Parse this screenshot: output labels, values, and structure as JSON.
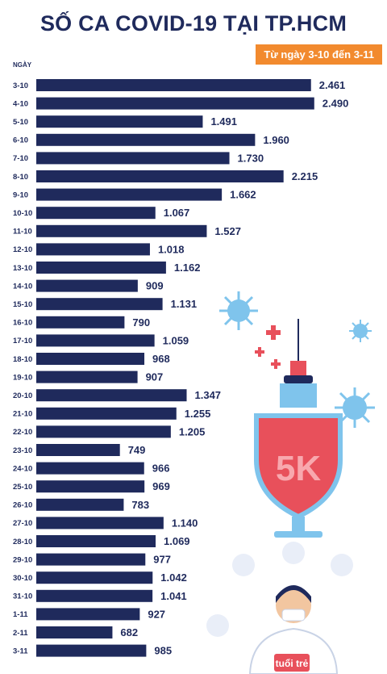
{
  "header": {
    "title": "SỐ CA COVID-19 TẠI TP.HCM",
    "subtitle": "Từ ngày 3-10 đến 3-11",
    "logo_text": "tuổi trẻ"
  },
  "colors": {
    "bar": "#1f2a5c",
    "accent": "#f28a2e"
  },
  "chart_data": {
    "type": "bar",
    "orientation": "horizontal",
    "ylabel": "NGÀY",
    "xlim": [
      0,
      2600
    ],
    "categories": [
      "3-10",
      "4-10",
      "5-10",
      "6-10",
      "7-10",
      "8-10",
      "9-10",
      "10-10",
      "11-10",
      "12-10",
      "13-10",
      "14-10",
      "15-10",
      "16-10",
      "17-10",
      "18-10",
      "19-10",
      "20-10",
      "21-10",
      "22-10",
      "23-10",
      "24-10",
      "25-10",
      "26-10",
      "27-10",
      "28-10",
      "29-10",
      "30-10",
      "31-10",
      "1-11",
      "2-11",
      "3-11"
    ],
    "values": [
      2461,
      2490,
      1491,
      1960,
      1730,
      2215,
      1662,
      1067,
      1527,
      1018,
      1162,
      909,
      1131,
      790,
      1059,
      968,
      907,
      1347,
      1255,
      1205,
      749,
      966,
      969,
      783,
      1140,
      1069,
      977,
      1042,
      1041,
      927,
      682,
      985
    ],
    "value_labels": [
      "2.461",
      "2.490",
      "1.491",
      "1.960",
      "1.730",
      "2.215",
      "1.662",
      "1.067",
      "1.527",
      "1.018",
      "1.162",
      "909",
      "1.131",
      "790",
      "1.059",
      "968",
      "907",
      "1.347",
      "1.255",
      "1.205",
      "749",
      "966",
      "969",
      "783",
      "1.140",
      "1.069",
      "977",
      "1.042",
      "1.041",
      "927",
      "682",
      "985"
    ],
    "grid": false,
    "legend": "none"
  },
  "illustration": {
    "badge_text": "5K"
  }
}
